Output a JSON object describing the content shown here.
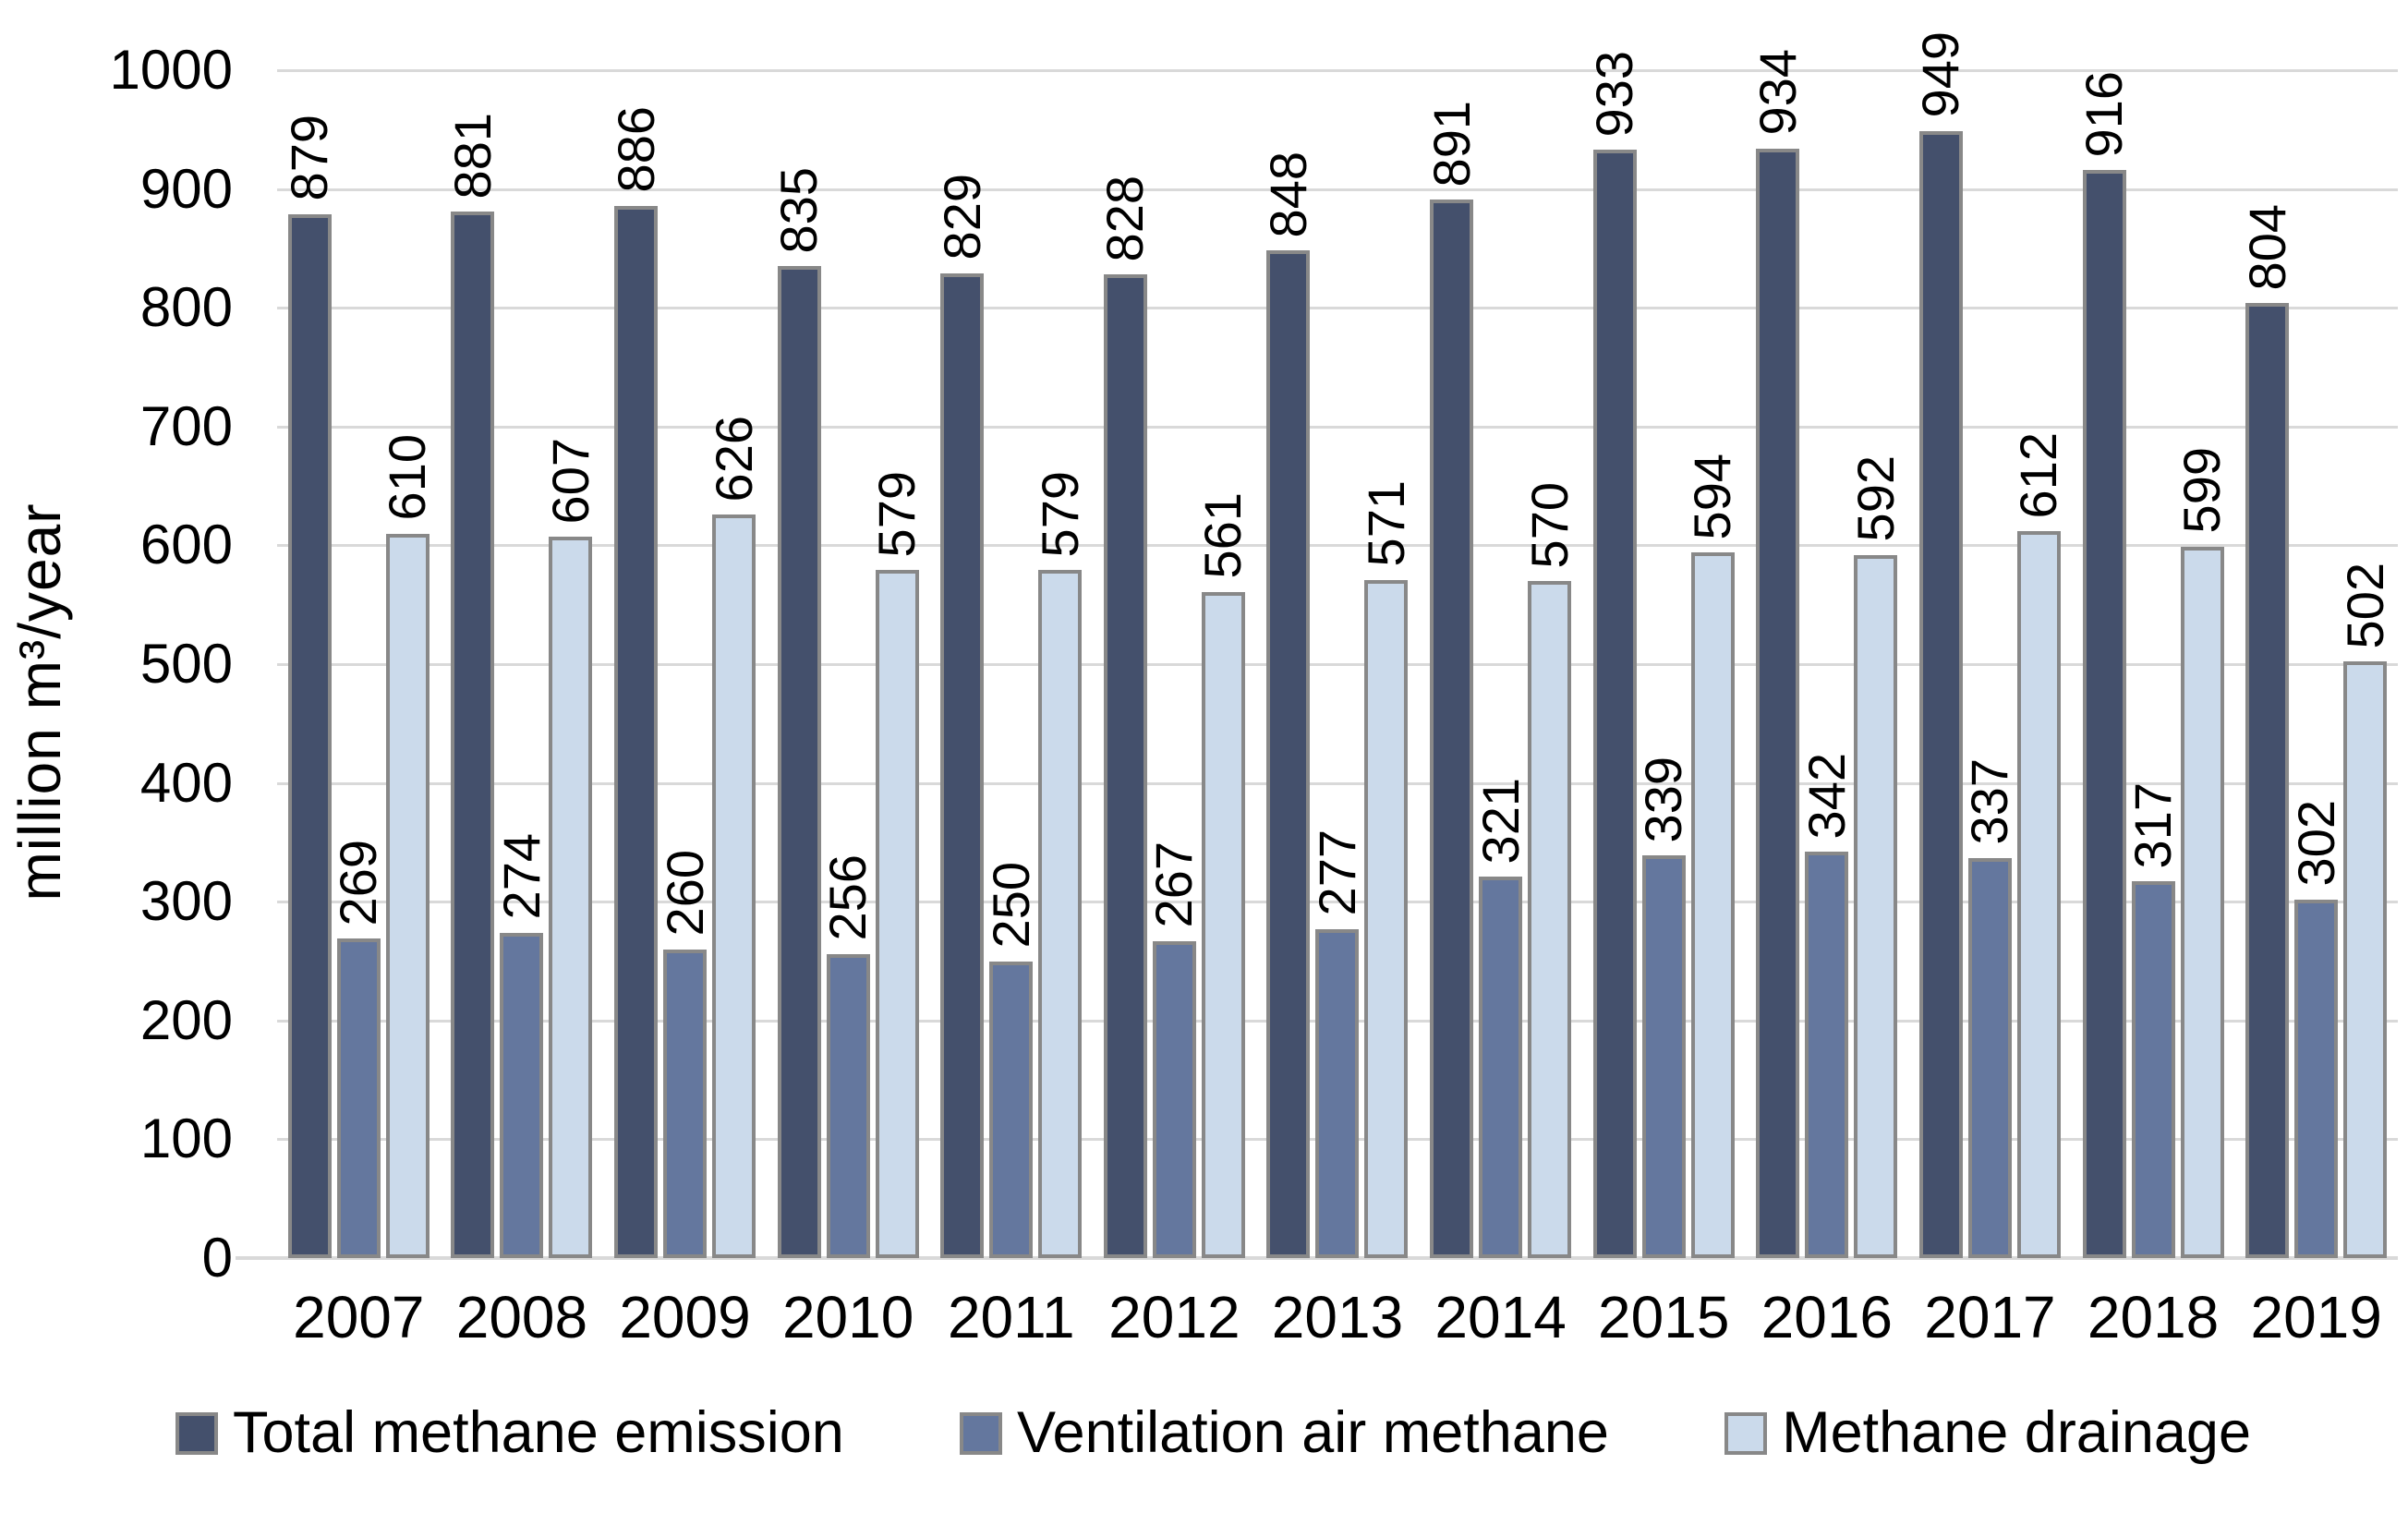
{
  "chart_data": {
    "type": "bar",
    "title": "",
    "ylabel": "million m³/year",
    "xlabel": "",
    "ylim": [
      0,
      1000
    ],
    "ytick_step": 100,
    "grid": true,
    "legend_position": "bottom",
    "categories": [
      "2007",
      "2008",
      "2009",
      "2010",
      "2011",
      "2012",
      "2013",
      "2014",
      "2015",
      "2016",
      "2017",
      "2018",
      "2019"
    ],
    "series": [
      {
        "name": "Total methane emission",
        "color": "#44506C",
        "values": [
          879,
          881,
          886,
          835,
          829,
          828,
          848,
          891,
          933,
          934,
          949,
          916,
          804
        ]
      },
      {
        "name": "Ventilation air methane",
        "color": "#64779E",
        "values": [
          269,
          274,
          260,
          256,
          250,
          267,
          277,
          321,
          339,
          342,
          337,
          317,
          302
        ]
      },
      {
        "name": "Methane drainage",
        "color": "#CBDAEB",
        "values": [
          610,
          607,
          626,
          579,
          579,
          561,
          571,
          570,
          594,
          592,
          612,
          599,
          502
        ]
      }
    ],
    "colors": {
      "bar_border": "#888888",
      "gridline": "#D9D9D9",
      "axis_line": "#D9D9D9",
      "label_text": "#000000"
    },
    "data_label_rotation_deg": -90
  }
}
